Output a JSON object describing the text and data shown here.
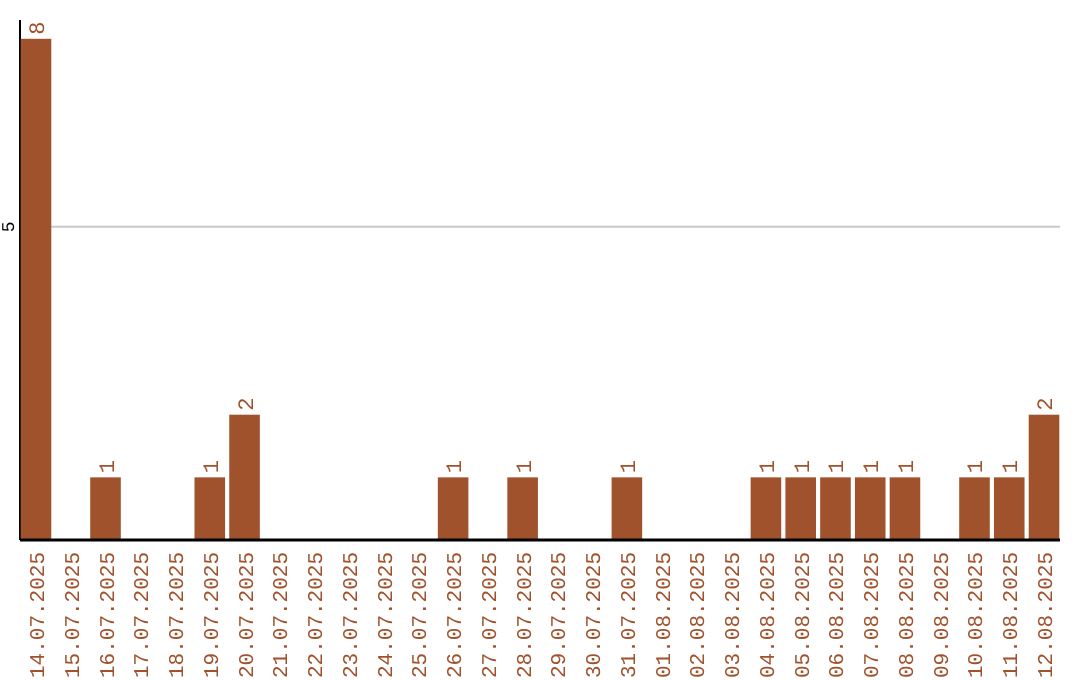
{
  "chart_data": {
    "type": "bar",
    "categories": [
      "14.07.2025",
      "15.07.2025",
      "16.07.2025",
      "17.07.2025",
      "18.07.2025",
      "19.07.2025",
      "20.07.2025",
      "21.07.2025",
      "22.07.2025",
      "23.07.2025",
      "24.07.2025",
      "25.07.2025",
      "26.07.2025",
      "27.07.2025",
      "28.07.2025",
      "29.07.2025",
      "30.07.2025",
      "31.07.2025",
      "01.08.2025",
      "02.08.2025",
      "03.08.2025",
      "04.08.2025",
      "05.08.2025",
      "06.08.2025",
      "07.08.2025",
      "08.08.2025",
      "09.08.2025",
      "10.08.2025",
      "11.08.2025",
      "12.08.2025"
    ],
    "values": [
      8,
      0,
      1,
      0,
      0,
      1,
      2,
      0,
      0,
      0,
      0,
      0,
      1,
      0,
      1,
      0,
      0,
      1,
      0,
      0,
      0,
      1,
      1,
      1,
      1,
      1,
      0,
      1,
      1,
      2
    ],
    "value_labels": [
      "8",
      null,
      "1",
      null,
      null,
      "1",
      "2",
      null,
      null,
      null,
      null,
      null,
      "1",
      null,
      "1",
      null,
      null,
      "1",
      null,
      null,
      null,
      "1",
      "1",
      "1",
      "1",
      "1",
      null,
      "1",
      "1",
      "2"
    ],
    "color": "#a0522d",
    "ylim": [
      0,
      8.3
    ],
    "yticks": [
      5
    ],
    "grid": "y"
  }
}
